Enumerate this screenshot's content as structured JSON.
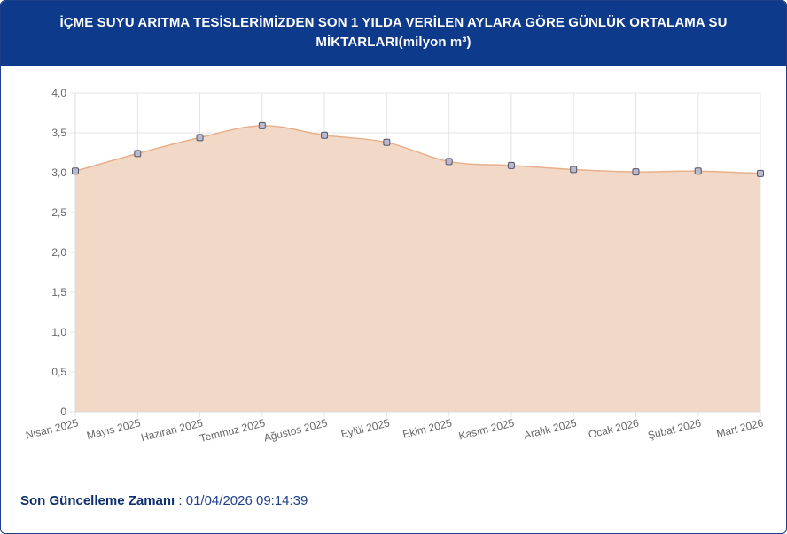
{
  "header": {
    "title": "İÇME SUYU ARITMA TESİSLERİMİZDEN SON 1 YILDA VERİLEN AYLARA GÖRE GÜNLÜK ORTALAMA SU MİKTARLARI(milyon m³)"
  },
  "footer": {
    "label": "Son Güncelleme Zamanı",
    "separator": " : ",
    "value": "01/04/2026 09:14:39"
  },
  "colors": {
    "header_bg": "#0e3a8c",
    "area_fill": "#f2d8c6",
    "line": "#e8b08a",
    "point_fill": "#b9b9cf",
    "point_stroke": "#555566"
  },
  "chart_data": {
    "type": "area",
    "categories": [
      "Nisan 2025",
      "Mayıs 2025",
      "Haziran 2025",
      "Temmuz 2025",
      "Ağustos 2025",
      "Eylül 2025",
      "Ekim 2025",
      "Kasım 2025",
      "Aralık 2025",
      "Ocak 2026",
      "Şubat 2026",
      "Mart 2026"
    ],
    "values": [
      3.02,
      3.24,
      3.44,
      3.59,
      3.47,
      3.38,
      3.14,
      3.09,
      3.04,
      3.01,
      3.02,
      2.99
    ],
    "ylim": [
      0,
      4
    ],
    "yticks": [
      "0",
      "0,5",
      "1,0",
      "1,5",
      "2,0",
      "2,5",
      "3,0",
      "3,5",
      "4,0"
    ],
    "grid": true,
    "legend": "none"
  }
}
